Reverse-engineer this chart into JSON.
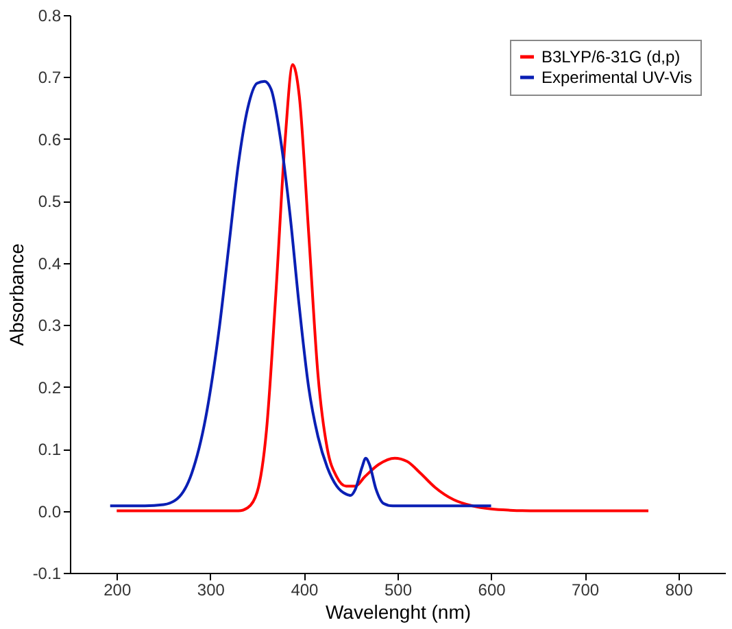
{
  "chart_data": {
    "type": "line",
    "xlabel": "Wavelenght (nm)",
    "ylabel": "Absorbance",
    "xlim": [
      150,
      850
    ],
    "xticks": [
      200,
      300,
      400,
      500,
      600,
      700,
      800
    ],
    "ylim": [
      -0.1,
      0.8
    ],
    "yticks": [
      -0.1,
      {
        "value": 0,
        "label": "0.0"
      },
      0.1,
      0.2,
      0.3,
      0.4,
      0.5,
      0.6,
      0.7,
      0.8
    ],
    "grid": false,
    "legend": "top right",
    "marker": "none",
    "line_style": "solid",
    "series": [
      {
        "name": "B3LYP/6-31G (d,p)",
        "color": "#ff0000",
        "x": [
          200,
          330,
          340,
          350,
          360,
          370,
          380,
          388,
          395,
          405,
          415,
          425,
          435,
          445,
          455,
          465,
          480,
          497,
          510,
          525,
          540,
          560,
          580,
          600,
          620,
          650,
          768
        ],
        "values": [
          0,
          0,
          0.005,
          0.03,
          0.13,
          0.35,
          0.6,
          0.72,
          0.67,
          0.45,
          0.22,
          0.1,
          0.055,
          0.04,
          0.04,
          0.055,
          0.075,
          0.085,
          0.08,
          0.06,
          0.038,
          0.018,
          0.008,
          0.003,
          0.001,
          0,
          0
        ]
      },
      {
        "name": "Experimental UV-Vis",
        "color": "#0a1fb4",
        "x": [
          193,
          230,
          250,
          265,
          280,
          295,
          310,
          320,
          330,
          340,
          350,
          358,
          365,
          375,
          385,
          395,
          405,
          415,
          425,
          435,
          445,
          450,
          455,
          462,
          466,
          470,
          477,
          485,
          495,
          600
        ],
        "values": [
          0.008,
          0.008,
          0.01,
          0.02,
          0.06,
          0.15,
          0.3,
          0.43,
          0.56,
          0.65,
          0.69,
          0.693,
          0.68,
          0.6,
          0.48,
          0.33,
          0.2,
          0.12,
          0.07,
          0.04,
          0.027,
          0.025,
          0.035,
          0.07,
          0.085,
          0.075,
          0.035,
          0.012,
          0.008,
          0.008
        ]
      }
    ]
  }
}
